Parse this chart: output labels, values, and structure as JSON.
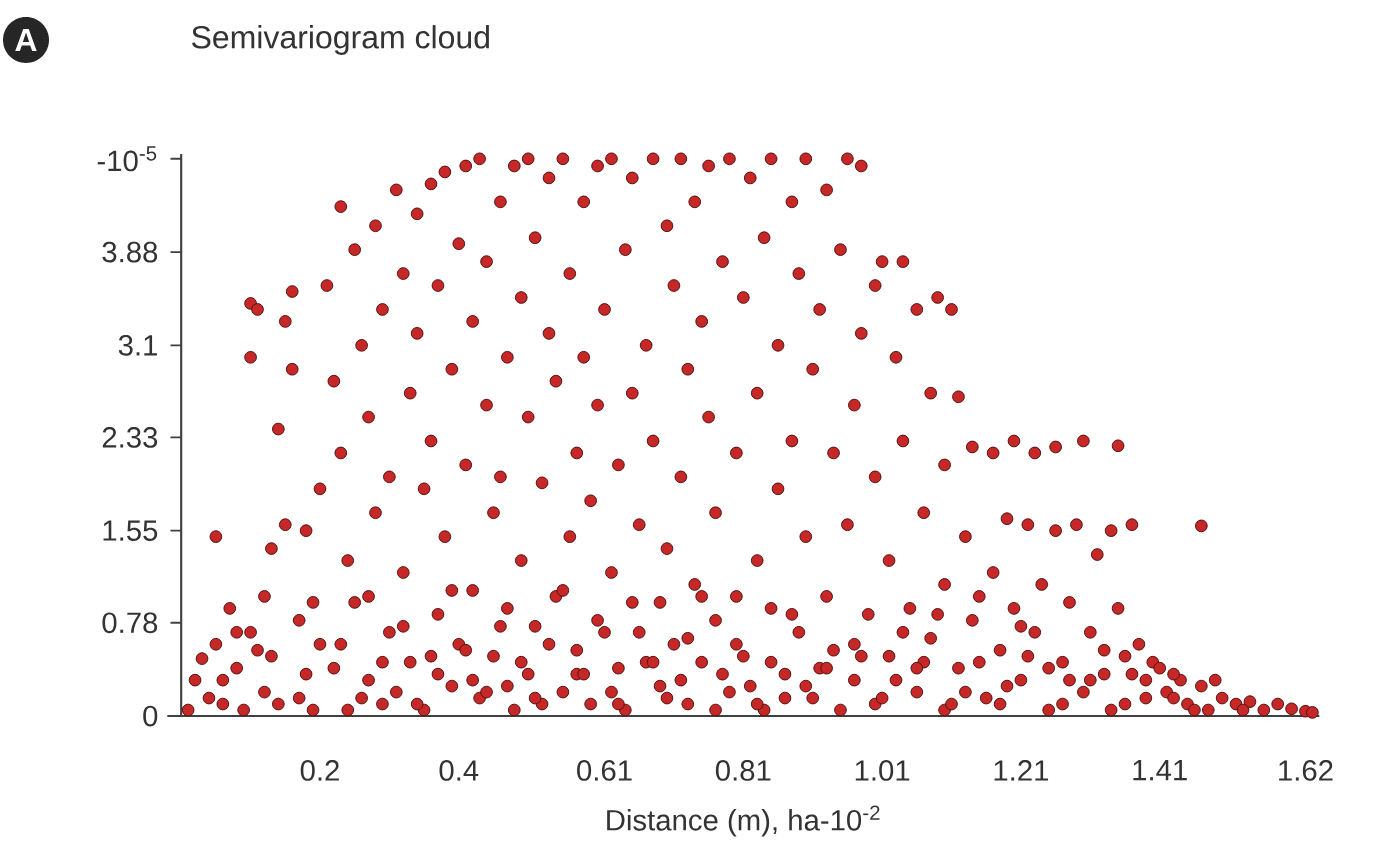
{
  "chart_data": {
    "type": "scatter",
    "title": "Semivariogram cloud",
    "xlabel": "Distance (m), ha-10$^{-2}$",
    "annotations": [
      "A"
    ],
    "color": "#c62828",
    "marker": "circle",
    "xlim": [
      -0.02,
      1.64
    ],
    "ylim": [
      0,
      4.7
    ],
    "xticks": [
      0.2,
      0.4,
      0.61,
      0.81,
      1.01,
      1.21,
      1.41,
      1.62
    ],
    "yticks": [
      0,
      0.78,
      1.55,
      2.33,
      3.1,
      3.88,
      {
        "value": 4.66,
        "label": "-10$^{-5}$"
      }
    ],
    "x": [
      0.01,
      0.02,
      0.03,
      0.04,
      0.05,
      0.05,
      0.06,
      0.07,
      0.08,
      0.09,
      0.1,
      0.1,
      0.1,
      0.11,
      0.12,
      0.12,
      0.11,
      0.13,
      0.14,
      0.15,
      0.15,
      0.16,
      0.16,
      0.17,
      0.18,
      0.18,
      0.19,
      0.2,
      0.2,
      0.21,
      0.22,
      0.23,
      0.23,
      0.24,
      0.25,
      0.25,
      0.26,
      0.27,
      0.27,
      0.28,
      0.28,
      0.29,
      0.29,
      0.3,
      0.3,
      0.31,
      0.32,
      0.32,
      0.33,
      0.33,
      0.34,
      0.34,
      0.35,
      0.35,
      0.36,
      0.36,
      0.37,
      0.37,
      0.38,
      0.38,
      0.39,
      0.39,
      0.4,
      0.4,
      0.41,
      0.41,
      0.42,
      0.42,
      0.43,
      0.43,
      0.44,
      0.44,
      0.45,
      0.45,
      0.46,
      0.46,
      0.47,
      0.47,
      0.48,
      0.48,
      0.49,
      0.49,
      0.5,
      0.5,
      0.5,
      0.51,
      0.51,
      0.52,
      0.53,
      0.53,
      0.54,
      0.54,
      0.55,
      0.55,
      0.56,
      0.56,
      0.57,
      0.57,
      0.58,
      0.58,
      0.59,
      0.59,
      0.6,
      0.6,
      0.6,
      0.61,
      0.62,
      0.62,
      0.63,
      0.63,
      0.64,
      0.64,
      0.65,
      0.65,
      0.66,
      0.66,
      0.67,
      0.68,
      0.68,
      0.69,
      0.69,
      0.7,
      0.7,
      0.71,
      0.71,
      0.72,
      0.72,
      0.73,
      0.73,
      0.74,
      0.74,
      0.75,
      0.75,
      0.76,
      0.76,
      0.77,
      0.77,
      0.78,
      0.79,
      0.79,
      0.8,
      0.8,
      0.81,
      0.81,
      0.82,
      0.83,
      0.83,
      0.84,
      0.84,
      0.85,
      0.85,
      0.86,
      0.86,
      0.87,
      0.88,
      0.88,
      0.89,
      0.89,
      0.9,
      0.9,
      0.91,
      0.91,
      0.92,
      0.93,
      0.93,
      0.94,
      0.94,
      0.95,
      0.96,
      0.96,
      0.97,
      0.97,
      0.98,
      0.98,
      0.99,
      1.0,
      1.0,
      1.0,
      1.01,
      1.02,
      1.02,
      1.03,
      1.04,
      1.04,
      1.05,
      1.06,
      1.06,
      1.07,
      1.08,
      1.08,
      1.09,
      1.1,
      1.1,
      1.1,
      1.11,
      1.12,
      1.12,
      1.13,
      1.14,
      1.14,
      1.15,
      1.16,
      1.17,
      1.17,
      1.18,
      1.19,
      1.2,
      1.2,
      1.21,
      1.22,
      1.23,
      1.23,
      1.24,
      1.25,
      1.26,
      1.26,
      1.27,
      1.28,
      1.29,
      1.3,
      1.3,
      1.31,
      1.32,
      1.33,
      1.34,
      1.35,
      1.35,
      1.36,
      1.37,
      1.38,
      1.39,
      1.4,
      1.41,
      1.42,
      1.43,
      1.44,
      1.45,
      1.47,
      1.47,
      1.48,
      1.5,
      1.52,
      1.54,
      1.56,
      1.58,
      1.6,
      1.62,
      1.63,
      0.06,
      0.14,
      0.22,
      0.26,
      0.31,
      0.36,
      0.42,
      0.47,
      0.52,
      0.57,
      0.62,
      0.67,
      0.72,
      0.77,
      0.82,
      0.87,
      0.92,
      0.97,
      1.03,
      1.07,
      1.13,
      1.18,
      1.22,
      1.28,
      1.33,
      1.37,
      0.08,
      0.13,
      0.17,
      0.19,
      0.23,
      0.24,
      0.27,
      0.29,
      0.32,
      0.34,
      0.37,
      0.39,
      0.41,
      0.44,
      0.46,
      0.49,
      0.51,
      0.53,
      0.55,
      0.58,
      0.61,
      0.63,
      0.65,
      0.68,
      0.7,
      0.73,
      0.75,
      0.78,
      0.8,
      0.83,
      0.85,
      0.88,
      0.9,
      0.93,
      0.95,
      0.98,
      1.01,
      1.04,
      1.06,
      1.09,
      1.11,
      1.15,
      1.19,
      1.21,
      1.25,
      1.27,
      1.31,
      1.34,
      1.36,
      1.39,
      1.43,
      1.46,
      1.49,
      1.53
    ],
    "values": [
      0.05,
      0.3,
      0.48,
      0.15,
      1.5,
      0.6,
      0.1,
      0.9,
      0.4,
      0.05,
      3.45,
      3.0,
      0.7,
      3.4,
      1.0,
      0.2,
      0.55,
      1.4,
      2.4,
      3.3,
      1.6,
      3.55,
      2.9,
      0.8,
      1.55,
      0.35,
      0.05,
      1.9,
      0.6,
      3.6,
      2.8,
      4.26,
      2.2,
      1.3,
      3.9,
      0.95,
      3.1,
      2.5,
      0.3,
      1.7,
      4.1,
      3.4,
      0.1,
      2.0,
      0.7,
      4.4,
      3.7,
      1.2,
      2.7,
      0.45,
      4.2,
      3.2,
      1.9,
      0.05,
      4.45,
      2.3,
      0.85,
      3.6,
      4.55,
      1.5,
      2.9,
      0.25,
      3.95,
      0.6,
      4.6,
      2.1,
      3.3,
      1.05,
      4.66,
      0.15,
      2.6,
      3.8,
      1.7,
      0.5,
      4.3,
      2.0,
      3.0,
      0.9,
      4.6,
      0.05,
      1.3,
      3.5,
      4.66,
      2.5,
      0.35,
      4.0,
      0.75,
      1.95,
      3.2,
      4.5,
      1.0,
      2.8,
      0.2,
      4.66,
      3.7,
      1.5,
      2.2,
      0.55,
      4.3,
      3.0,
      0.1,
      1.8,
      4.6,
      2.6,
      0.8,
      3.4,
      4.66,
      1.2,
      2.1,
      0.4,
      3.9,
      0.05,
      4.5,
      2.7,
      1.6,
      0.7,
      3.1,
      4.66,
      2.3,
      0.95,
      0.25,
      4.1,
      1.4,
      3.6,
      0.6,
      4.66,
      2.0,
      2.9,
      0.1,
      4.3,
      1.1,
      3.3,
      0.45,
      4.6,
      2.5,
      1.7,
      0.8,
      3.8,
      4.66,
      0.2,
      2.2,
      1.0,
      3.5,
      0.5,
      4.5,
      2.7,
      1.3,
      4.0,
      0.05,
      4.66,
      0.9,
      3.1,
      1.9,
      0.35,
      4.3,
      2.3,
      3.7,
      0.7,
      4.66,
      1.5,
      2.9,
      0.15,
      3.4,
      4.4,
      1.0,
      2.2,
      0.55,
      3.9,
      4.66,
      1.6,
      2.6,
      0.3,
      4.6,
      3.2,
      0.85,
      3.6,
      2.0,
      0.1,
      3.8,
      1.3,
      0.5,
      3.0,
      3.8,
      2.3,
      0.9,
      3.4,
      0.2,
      1.7,
      2.7,
      0.65,
      3.5,
      2.1,
      1.1,
      0.05,
      3.4,
      2.67,
      0.4,
      1.5,
      2.25,
      0.8,
      1.0,
      0.15,
      2.2,
      1.2,
      0.55,
      1.65,
      2.3,
      0.9,
      0.3,
      1.6,
      2.2,
      0.7,
      1.1,
      0.05,
      2.25,
      1.55,
      0.45,
      0.95,
      1.6,
      0.2,
      2.3,
      0.7,
      1.35,
      0.35,
      1.55,
      2.26,
      0.9,
      0.1,
      1.6,
      0.6,
      0.3,
      0.45,
      0.4,
      0.2,
      0.15,
      0.3,
      0.1,
      1.59,
      0.25,
      0.05,
      0.15,
      0.1,
      0.12,
      0.05,
      0.1,
      0.06,
      0.04,
      0.03,
      0.3,
      0.1,
      0.4,
      0.15,
      0.2,
      0.5,
      0.3,
      0.25,
      0.1,
      0.35,
      0.2,
      0.45,
      0.3,
      0.05,
      0.25,
      0.15,
      0.4,
      0.6,
      0.3,
      0.45,
      0.2,
      0.1,
      0.5,
      0.3,
      0.55,
      0.35,
      0.7,
      0.5,
      0.15,
      0.95,
      0.6,
      0.05,
      1.0,
      0.45,
      0.75,
      0.1,
      0.35,
      1.05,
      0.55,
      0.2,
      0.75,
      0.45,
      0.15,
      0.6,
      1.05,
      0.35,
      0.7,
      0.1,
      0.95,
      0.45,
      0.15,
      0.65,
      1.0,
      0.35,
      0.6,
      0.1,
      0.45,
      0.85,
      0.25,
      0.4,
      0.05,
      0.5,
      0.15,
      0.7,
      0.4,
      0.85,
      0.1,
      0.45,
      0.25,
      0.75,
      0.4,
      0.1,
      0.3,
      0.05,
      0.5,
      0.15,
      0.35,
      0.05,
      0.3,
      0.05
    ]
  }
}
